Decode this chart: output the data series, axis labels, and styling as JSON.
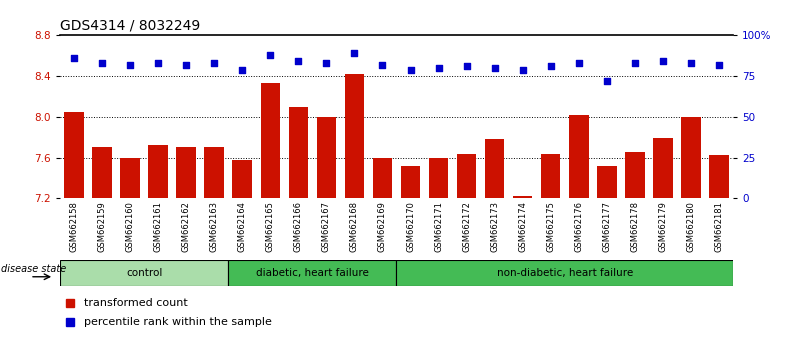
{
  "title": "GDS4314 / 8032249",
  "samples": [
    "GSM662158",
    "GSM662159",
    "GSM662160",
    "GSM662161",
    "GSM662162",
    "GSM662163",
    "GSM662164",
    "GSM662165",
    "GSM662166",
    "GSM662167",
    "GSM662168",
    "GSM662169",
    "GSM662170",
    "GSM662171",
    "GSM662172",
    "GSM662173",
    "GSM662174",
    "GSM662175",
    "GSM662176",
    "GSM662177",
    "GSM662178",
    "GSM662179",
    "GSM662180",
    "GSM662181"
  ],
  "bar_values": [
    8.05,
    7.7,
    7.6,
    7.72,
    7.7,
    7.7,
    7.58,
    8.33,
    8.1,
    8.0,
    8.42,
    7.6,
    7.52,
    7.6,
    7.63,
    7.78,
    7.22,
    7.63,
    8.02,
    7.52,
    7.65,
    7.79,
    8.0,
    7.62
  ],
  "percentile_values": [
    86,
    83,
    82,
    83,
    82,
    83,
    79,
    88,
    84,
    83,
    89,
    82,
    79,
    80,
    81,
    80,
    79,
    81,
    83,
    72,
    83,
    84,
    83,
    82
  ],
  "ymin": 7.2,
  "ymax": 8.8,
  "ylim_right": [
    0,
    100
  ],
  "yticks_left": [
    7.2,
    7.6,
    8.0,
    8.4,
    8.8
  ],
  "yticks_right": [
    0,
    25,
    50,
    75,
    100
  ],
  "ytick_labels_right": [
    "0",
    "25",
    "50",
    "75",
    "100%"
  ],
  "hlines": [
    7.6,
    8.0,
    8.4
  ],
  "bar_color": "#CC1100",
  "percentile_color": "#0000CC",
  "bg_color": "#FFFFFF",
  "xtick_bg_color": "#C8C8C8",
  "title_fontsize": 10,
  "group_info": [
    {
      "label": "control",
      "start": 0,
      "end": 5,
      "color": "#AADDAA"
    },
    {
      "label": "diabetic, heart failure",
      "start": 6,
      "end": 11,
      "color": "#44BB55"
    },
    {
      "label": "non-diabetic, heart failure",
      "start": 12,
      "end": 23,
      "color": "#44BB55"
    }
  ],
  "legend_items": [
    {
      "label": "transformed count",
      "color": "#CC1100"
    },
    {
      "label": "percentile rank within the sample",
      "color": "#0000CC"
    }
  ],
  "disease_state_label": "disease state"
}
